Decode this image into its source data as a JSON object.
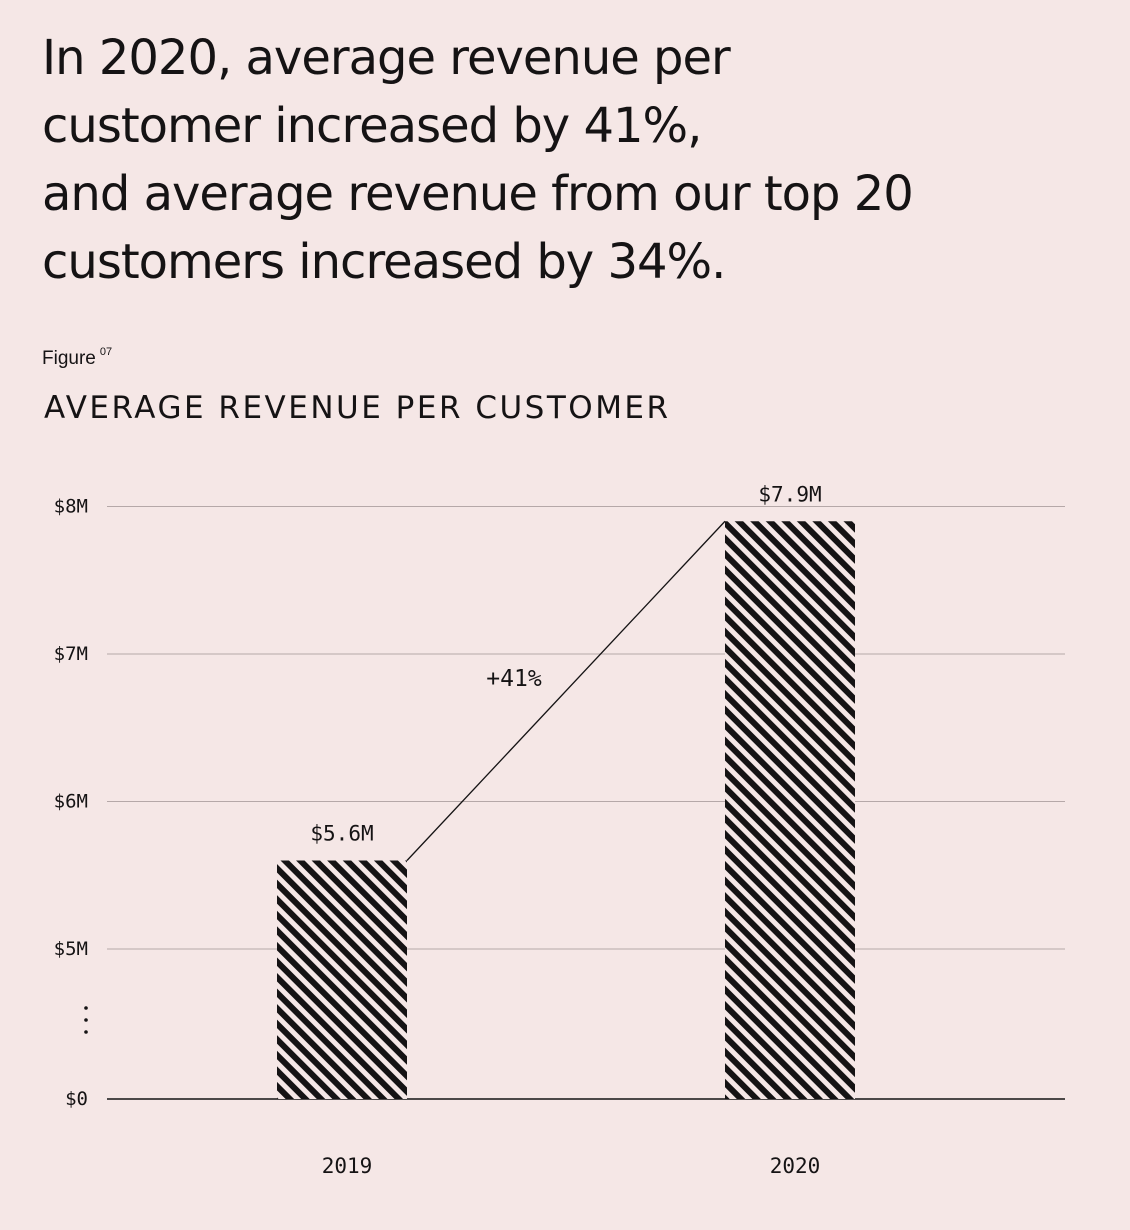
{
  "headline": {
    "lines": [
      "In 2020, average revenue per",
      "customer increased by 41%,",
      "and average revenue from our top 20",
      "customers increased by 34%."
    ]
  },
  "figure": {
    "label": "Figure",
    "number": "07"
  },
  "chart_data": {
    "type": "bar",
    "title": "AVERAGE REVENUE PER CUSTOMER",
    "categories": [
      "2019",
      "2020"
    ],
    "values": [
      5.6,
      7.9
    ],
    "value_labels": [
      "$5.6M",
      "$7.9M"
    ],
    "y_ticks": [
      {
        "value": 0,
        "label": "$0"
      },
      {
        "value": 5,
        "label": "$5M"
      },
      {
        "value": 6,
        "label": "$6M"
      },
      {
        "value": 7,
        "label": "$7M"
      },
      {
        "value": 8,
        "label": "$8M"
      }
    ],
    "axis_break": {
      "between": [
        0,
        5
      ]
    },
    "ylim": [
      0,
      8
    ],
    "grid": true,
    "annotation": {
      "text": "+41%",
      "from": "2019",
      "to": "2020"
    },
    "colors": {
      "bar_pattern": "#151314",
      "grid": "#b5a8a8",
      "background": "#f5e7e6"
    }
  }
}
